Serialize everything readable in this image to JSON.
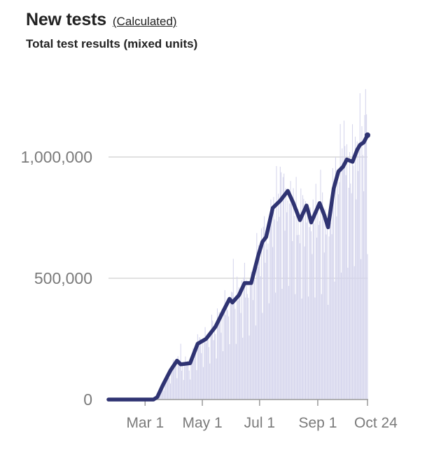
{
  "header": {
    "title": "New tests",
    "link_label": "(Calculated)",
    "subtitle": "Total test results (mixed units)"
  },
  "colors": {
    "bar": "#d4d4ec",
    "line": "#2f3372",
    "gridline": "#cfcfcf",
    "axis": "#9a9a9a",
    "label": "#7a7a7a"
  },
  "chart_data": {
    "type": "bar",
    "title": "New tests",
    "subtitle": "Total test results (mixed units)",
    "x_range": [
      "2020-01-22",
      "2020-10-24"
    ],
    "ylim": [
      0,
      1300000
    ],
    "y_ticks": [
      {
        "value": 0,
        "label": "0"
      },
      {
        "value": 500000,
        "label": "500,000"
      },
      {
        "value": 1000000,
        "label": "1,000,000"
      }
    ],
    "x_ticks": [
      {
        "date": "2020-03-01",
        "label": "Mar 1"
      },
      {
        "date": "2020-05-01",
        "label": "May 1"
      },
      {
        "date": "2020-07-01",
        "label": "Jul 1"
      },
      {
        "date": "2020-09-01",
        "label": "Sep 1"
      },
      {
        "date": "2020-10-24",
        "label": "Oct 24"
      }
    ],
    "grid": true,
    "series": [
      {
        "kind": "bar",
        "description": "daily new tests",
        "noise": 0.22,
        "peaks": [
          {
            "date": "2020-04-08",
            "value": 230000
          },
          {
            "date": "2020-05-11",
            "value": 350000
          },
          {
            "date": "2020-06-03",
            "value": 580000
          },
          {
            "date": "2020-07-23",
            "value": 960000
          },
          {
            "date": "2020-09-29",
            "value": 1150000
          },
          {
            "date": "2020-10-22",
            "value": 1280000
          }
        ]
      },
      {
        "kind": "line",
        "description": "7-day average",
        "points": [
          {
            "date": "2020-01-22",
            "value": 0
          },
          {
            "date": "2020-03-10",
            "value": 0
          },
          {
            "date": "2020-03-14",
            "value": 10000
          },
          {
            "date": "2020-03-20",
            "value": 60000
          },
          {
            "date": "2020-03-28",
            "value": 120000
          },
          {
            "date": "2020-04-04",
            "value": 160000
          },
          {
            "date": "2020-04-08",
            "value": 145000
          },
          {
            "date": "2020-04-18",
            "value": 150000
          },
          {
            "date": "2020-04-26",
            "value": 230000
          },
          {
            "date": "2020-05-05",
            "value": 250000
          },
          {
            "date": "2020-05-15",
            "value": 300000
          },
          {
            "date": "2020-05-24",
            "value": 370000
          },
          {
            "date": "2020-05-30",
            "value": 415000
          },
          {
            "date": "2020-06-02",
            "value": 400000
          },
          {
            "date": "2020-06-09",
            "value": 430000
          },
          {
            "date": "2020-06-15",
            "value": 480000
          },
          {
            "date": "2020-06-22",
            "value": 480000
          },
          {
            "date": "2020-06-30",
            "value": 600000
          },
          {
            "date": "2020-07-04",
            "value": 650000
          },
          {
            "date": "2020-07-08",
            "value": 670000
          },
          {
            "date": "2020-07-15",
            "value": 790000
          },
          {
            "date": "2020-07-23",
            "value": 820000
          },
          {
            "date": "2020-07-31",
            "value": 860000
          },
          {
            "date": "2020-08-06",
            "value": 810000
          },
          {
            "date": "2020-08-13",
            "value": 740000
          },
          {
            "date": "2020-08-20",
            "value": 800000
          },
          {
            "date": "2020-08-25",
            "value": 730000
          },
          {
            "date": "2020-09-03",
            "value": 810000
          },
          {
            "date": "2020-09-08",
            "value": 760000
          },
          {
            "date": "2020-09-12",
            "value": 710000
          },
          {
            "date": "2020-09-18",
            "value": 870000
          },
          {
            "date": "2020-09-23",
            "value": 940000
          },
          {
            "date": "2020-09-28",
            "value": 960000
          },
          {
            "date": "2020-10-02",
            "value": 990000
          },
          {
            "date": "2020-10-08",
            "value": 980000
          },
          {
            "date": "2020-10-13",
            "value": 1030000
          },
          {
            "date": "2020-10-16",
            "value": 1050000
          },
          {
            "date": "2020-10-20",
            "value": 1060000
          },
          {
            "date": "2020-10-24",
            "value": 1090000
          }
        ]
      }
    ]
  }
}
